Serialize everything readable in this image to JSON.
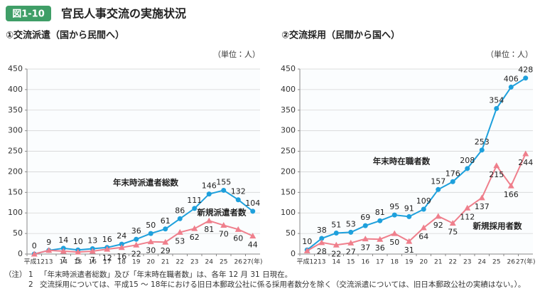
{
  "figure_label": "図1-10",
  "figure_title": "官民人事交流の実施状況",
  "chart_data": [
    {
      "type": "line",
      "title": "①交流派遣（国から民間へ）",
      "unit_label": "（単位：人）",
      "categories": [
        "平成12",
        "13",
        "14",
        "15",
        "16",
        "17",
        "18",
        "19",
        "20",
        "21",
        "22",
        "23",
        "24",
        "25",
        "26",
        "27(年)"
      ],
      "series": [
        {
          "name": "年末時派遣者総数",
          "color": "#1ea0dc",
          "marker": "circle",
          "values": [
            0,
            9,
            14,
            10,
            13,
            16,
            24,
            36,
            50,
            61,
            86,
            111,
            146,
            155,
            132,
            104
          ]
        },
        {
          "name": "新規派遣者数",
          "color": "#ef7f8c",
          "marker": "triangle",
          "values": [
            0,
            9,
            7,
            5,
            7,
            12,
            16,
            22,
            30,
            29,
            53,
            62,
            81,
            70,
            60,
            44
          ],
          "value_labels": [
            null,
            null,
            "7",
            "5",
            "7",
            "12",
            "16",
            "22",
            "30",
            "29",
            "53",
            "62",
            "81",
            "70",
            "60",
            "44"
          ]
        }
      ],
      "ylim": [
        0,
        450
      ],
      "yticks": [
        0,
        50,
        100,
        150,
        200,
        250,
        300,
        350,
        400,
        450
      ],
      "grid": true
    },
    {
      "type": "line",
      "title": "②交流採用（民間から国へ）",
      "unit_label": "（単位：人）",
      "categories": [
        "平成12",
        "13",
        "14",
        "15",
        "16",
        "17",
        "18",
        "19",
        "20",
        "21",
        "22",
        "23",
        "24",
        "25",
        "26",
        "27(年)"
      ],
      "series": [
        {
          "name": "年末時在職者数",
          "color": "#1ea0dc",
          "marker": "circle",
          "values": [
            10,
            38,
            51,
            53,
            69,
            81,
            95,
            91,
            109,
            157,
            176,
            208,
            253,
            354,
            406,
            428
          ]
        },
        {
          "name": "新規採用者数",
          "color": "#ef7f8c",
          "marker": "triangle",
          "values": [
            8,
            28,
            22,
            27,
            37,
            36,
            50,
            31,
            64,
            92,
            75,
            112,
            137,
            215,
            166,
            244
          ],
          "value_labels": [
            null,
            "28",
            "22",
            "27",
            "37",
            "36",
            "50",
            "31",
            "64",
            "92",
            "75",
            "112",
            "137",
            "215",
            "166",
            "244"
          ]
        }
      ],
      "ylim": [
        0,
        450
      ],
      "yticks": [
        0,
        50,
        100,
        150,
        200,
        250,
        300,
        350,
        400,
        450
      ],
      "grid": true
    }
  ],
  "notes": {
    "label": "（注）",
    "items": [
      {
        "number": "1",
        "text": "「年末時派遣者総数」及び「年末時在職者数」は、各年 12 月 31 日現在。"
      },
      {
        "number": "2",
        "text": "交流採用については、平成15 ～ 18年における旧日本郵政公社に係る採用者数分を除く（交流派遣については、旧日本郵政公社の実績はない。）。"
      }
    ]
  }
}
